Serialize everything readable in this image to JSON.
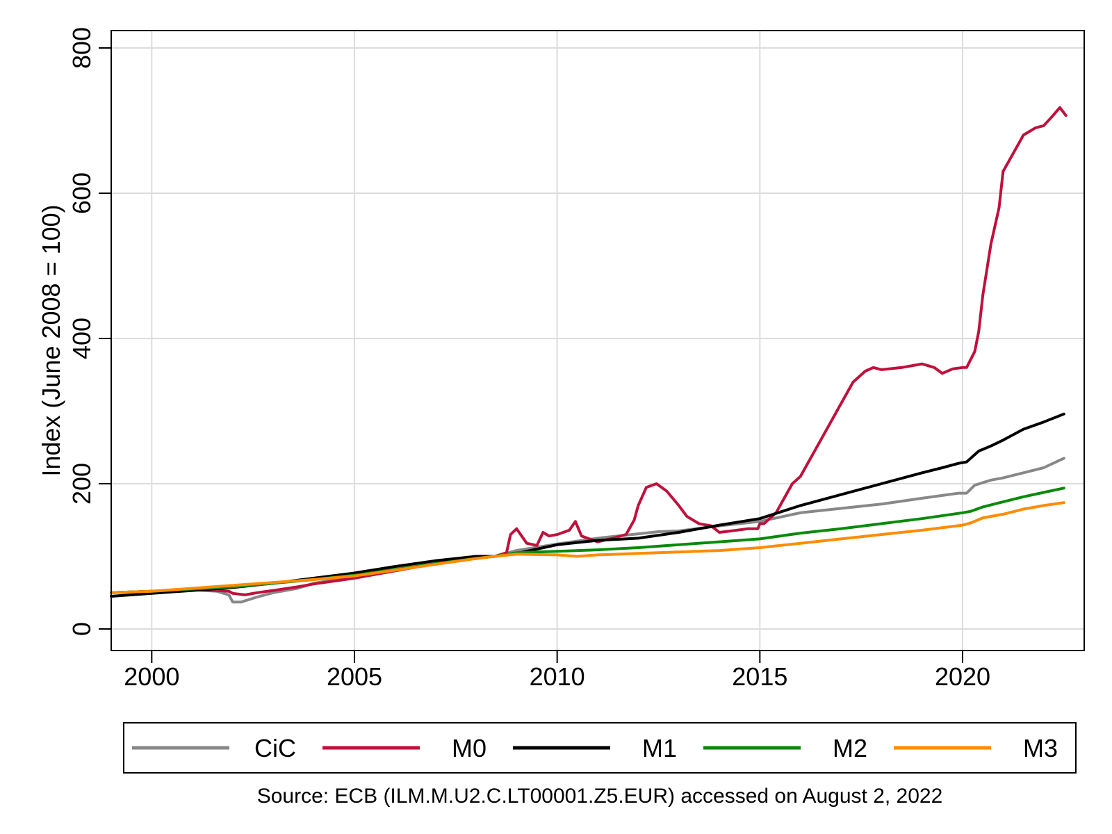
{
  "chart_data": {
    "type": "line",
    "title": "",
    "xlabel": "",
    "ylabel": "Index (June 2008 = 100)",
    "xlim": [
      1999.0,
      2023.0
    ],
    "ylim": [
      0,
      800
    ],
    "x_ticks": [
      "2000",
      "2005",
      "2010",
      "2015",
      "2020"
    ],
    "y_ticks": [
      "0",
      "200",
      "400",
      "600",
      "800"
    ],
    "grid": true,
    "legend_position": "bottom",
    "note": "Source: ECB (ILM.M.U2.C.LT00001.Z5.EUR) accessed on August 2, 2022",
    "series": [
      {
        "name": "CiC",
        "color": "#888888",
        "x": [
          1999.0,
          2000.0,
          2001.0,
          2001.6,
          2001.9,
          2002.0,
          2002.2,
          2002.6,
          2003.0,
          2003.6,
          2004.0,
          2005.0,
          2006.0,
          2007.0,
          2008.0,
          2008.46,
          2009.0,
          2010.0,
          2011.0,
          2012.0,
          2012.5,
          2013.0,
          2014.0,
          2015.0,
          2016.0,
          2017.0,
          2018.0,
          2019.0,
          2019.9,
          2020.1,
          2020.3,
          2020.7,
          2021.0,
          2021.5,
          2022.0,
          2022.5
        ],
        "y": [
          50,
          52,
          54,
          52,
          47,
          37,
          37,
          44,
          50,
          56,
          63,
          72,
          81,
          90,
          98,
          100,
          108,
          117,
          125,
          131,
          134,
          135,
          142,
          148,
          160,
          166,
          172,
          180,
          187,
          187,
          198,
          205,
          208,
          215,
          222,
          235
        ]
      },
      {
        "name": "M0",
        "color": "#c0103c",
        "x": [
          1999.0,
          2000.0,
          2001.0,
          2001.6,
          2001.9,
          2002.0,
          2002.3,
          2002.6,
          2003.0,
          2003.6,
          2004.0,
          2005.0,
          2006.0,
          2007.0,
          2008.0,
          2008.46,
          2008.75,
          2008.85,
          2009.0,
          2009.25,
          2009.5,
          2009.65,
          2009.8,
          2010.0,
          2010.3,
          2010.45,
          2010.6,
          2011.0,
          2011.3,
          2011.7,
          2011.9,
          2012.0,
          2012.2,
          2012.45,
          2012.7,
          2013.0,
          2013.2,
          2013.5,
          2013.8,
          2014.0,
          2014.3,
          2014.7,
          2014.95,
          2015.0,
          2015.1,
          2015.4,
          2015.6,
          2015.8,
          2016.0,
          2016.3,
          2016.6,
          2017.0,
          2017.3,
          2017.6,
          2017.8,
          2018.0,
          2018.5,
          2019.0,
          2019.3,
          2019.5,
          2019.75,
          2020.0,
          2020.1,
          2020.3,
          2020.4,
          2020.5,
          2020.7,
          2020.9,
          2021.0,
          2021.2,
          2021.4,
          2021.5,
          2021.8,
          2022.0,
          2022.2,
          2022.4,
          2022.55
        ],
        "y": [
          50,
          52,
          54,
          53,
          52,
          49,
          47,
          50,
          53,
          58,
          62,
          70,
          80,
          90,
          98,
          100,
          105,
          130,
          138,
          118,
          115,
          133,
          128,
          130,
          136,
          148,
          128,
          120,
          124,
          130,
          150,
          170,
          195,
          200,
          190,
          170,
          155,
          145,
          142,
          133,
          135,
          138,
          138,
          145,
          145,
          160,
          180,
          200,
          210,
          240,
          270,
          310,
          340,
          355,
          360,
          357,
          360,
          365,
          360,
          352,
          358,
          360,
          360,
          382,
          410,
          460,
          530,
          580,
          630,
          650,
          670,
          680,
          690,
          693,
          705,
          718,
          707
        ]
      },
      {
        "name": "M1",
        "color": "#000000",
        "x": [
          1999.0,
          2000.0,
          2001.0,
          2002.0,
          2003.0,
          2004.0,
          2005.0,
          2006.0,
          2007.0,
          2008.0,
          2008.46,
          2009.0,
          2010.0,
          2011.0,
          2012.0,
          2013.0,
          2014.0,
          2015.0,
          2016.0,
          2017.0,
          2018.0,
          2019.0,
          2019.5,
          2019.9,
          2020.1,
          2020.4,
          2020.7,
          2021.0,
          2021.5,
          2022.0,
          2022.5
        ],
        "y": [
          45,
          49,
          53,
          57,
          63,
          70,
          77,
          86,
          94,
          100,
          100,
          104,
          116,
          122,
          125,
          133,
          143,
          152,
          170,
          185,
          200,
          215,
          222,
          228,
          230,
          245,
          252,
          260,
          275,
          285,
          296
        ]
      },
      {
        "name": "M2",
        "color": "#0a8a0a",
        "x": [
          1999.0,
          2000.0,
          2001.0,
          2002.0,
          2003.0,
          2004.0,
          2005.0,
          2006.0,
          2007.0,
          2008.0,
          2008.46,
          2009.0,
          2010.0,
          2011.0,
          2012.0,
          2013.0,
          2014.0,
          2015.0,
          2016.0,
          2017.0,
          2018.0,
          2019.0,
          2020.0,
          2020.2,
          2020.5,
          2021.0,
          2021.5,
          2022.0,
          2022.5
        ],
        "y": [
          50,
          52,
          55,
          58,
          63,
          68,
          74,
          82,
          90,
          97,
          100,
          105,
          107,
          109,
          112,
          116,
          120,
          124,
          132,
          138,
          145,
          152,
          160,
          162,
          168,
          175,
          182,
          188,
          194
        ]
      },
      {
        "name": "M3",
        "color": "#ff8c00",
        "x": [
          1999.0,
          2000.0,
          2001.0,
          2002.0,
          2003.0,
          2004.0,
          2005.0,
          2006.0,
          2007.0,
          2008.0,
          2008.46,
          2009.0,
          2010.0,
          2010.5,
          2011.0,
          2012.0,
          2013.0,
          2014.0,
          2015.0,
          2016.0,
          2017.0,
          2018.0,
          2019.0,
          2020.0,
          2020.2,
          2020.5,
          2021.0,
          2021.5,
          2022.0,
          2022.5
        ],
        "y": [
          50,
          52,
          56,
          60,
          64,
          68,
          73,
          81,
          89,
          97,
          100,
          103,
          102,
          100,
          102,
          104,
          106,
          108,
          112,
          118,
          124,
          130,
          136,
          143,
          146,
          153,
          158,
          165,
          170,
          174
        ]
      }
    ]
  }
}
